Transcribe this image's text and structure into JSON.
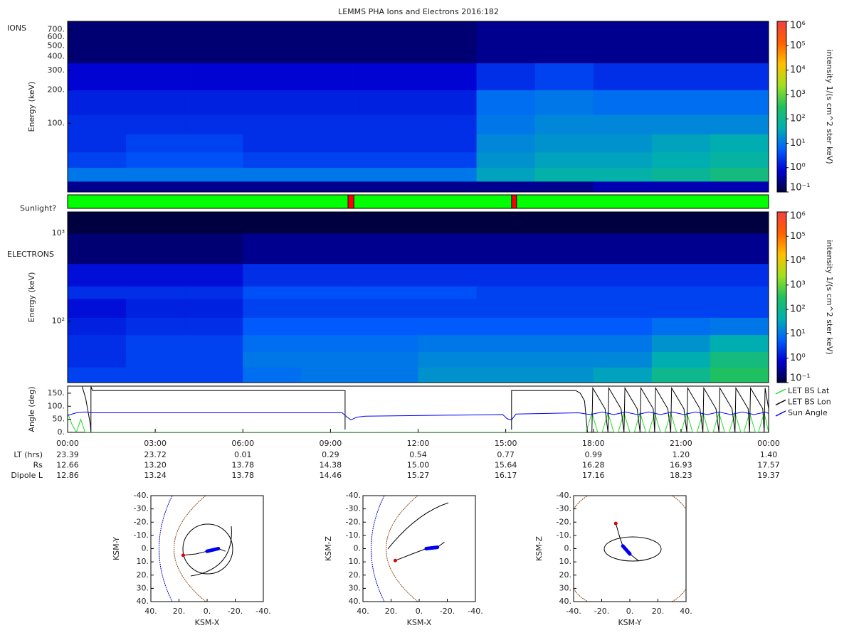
{
  "chart_data": [
    {
      "type": "spectrogram",
      "title": "LEMMS PHA Ions and Electrons  2016:182",
      "label": "IONS",
      "ylabel": "Energy (keV)",
      "log_y": true,
      "xlim": [
        0,
        24
      ],
      "ylim": [
        24,
        830
      ],
      "yticks": [
        {
          "value": 100,
          "label": "100."
        },
        {
          "value": 200,
          "label": "200."
        },
        {
          "value": 300,
          "label": "300."
        },
        {
          "value": 400,
          "label": "400."
        },
        {
          "value": 500,
          "label": "500."
        },
        {
          "value": 600,
          "label": "600."
        },
        {
          "value": 700,
          "label": "700."
        }
      ],
      "time_bins": [
        0,
        2,
        4,
        6,
        8,
        10,
        12,
        14,
        16,
        18,
        20,
        22,
        24
      ],
      "energy_bins": [
        24,
        30,
        40,
        55,
        80,
        120,
        200,
        350,
        830
      ],
      "values": [
        [
          0.3,
          0.3,
          0.3,
          0.3,
          0.3,
          0.3,
          0.3,
          0.3,
          0.3,
          0.5,
          0.5,
          0.5
        ],
        [
          10,
          10,
          10,
          10,
          10,
          10,
          10,
          30,
          50,
          50,
          80,
          150
        ],
        [
          3,
          4,
          4,
          3,
          3,
          3,
          3,
          20,
          30,
          30,
          40,
          60
        ],
        [
          2,
          3,
          3,
          2,
          2,
          2,
          2,
          15,
          20,
          20,
          30,
          40
        ],
        [
          2,
          2,
          2,
          2,
          2,
          2,
          2,
          10,
          15,
          15,
          15,
          15
        ],
        [
          1.5,
          1.5,
          1.5,
          1.5,
          1.5,
          1.5,
          1.5,
          8,
          10,
          8,
          8,
          8
        ],
        [
          0.8,
          0.8,
          0.8,
          0.8,
          0.8,
          0.8,
          0.8,
          2,
          3,
          2,
          2,
          2
        ],
        [
          0.2,
          0.2,
          0.2,
          0.2,
          0.2,
          0.2,
          0.2,
          0.3,
          0.3,
          0.3,
          0.3,
          0.3
        ]
      ],
      "colorbar": {
        "label": "intensity 1/(s cm^2 ster keV)",
        "lim": [
          0.1,
          1000000
        ],
        "colormap": [
          "#000040",
          "#0000d0",
          "#0060ff",
          "#00b0b0",
          "#20c060",
          "#a0e020",
          "#ffc000",
          "#ff6000",
          "#f04040"
        ],
        "ticks": [
          {
            "value": 0.1,
            "label": "10⁻¹"
          },
          {
            "value": 1,
            "label": "10⁰"
          },
          {
            "value": 10,
            "label": "10¹"
          },
          {
            "value": 100,
            "label": "10²"
          },
          {
            "value": 1000,
            "label": "10³"
          },
          {
            "value": 10000,
            "label": "10⁴"
          },
          {
            "value": 100000,
            "label": "10⁵"
          },
          {
            "value": 1000000,
            "label": "10⁶"
          }
        ]
      }
    },
    {
      "type": "timeline",
      "label": "Sunlight?",
      "xlim": [
        0,
        24
      ],
      "color": "#00ff00",
      "intervals": [
        {
          "start": 9.6,
          "end": 9.8,
          "color": "#ff0000"
        },
        {
          "start": 15.2,
          "end": 15.37,
          "color": "#ff0000"
        }
      ]
    },
    {
      "type": "spectrogram",
      "label": "ELECTRONS",
      "ylabel": "Energy (keV)",
      "log_y": true,
      "xlim": [
        0,
        24
      ],
      "ylim": [
        20,
        1740
      ],
      "yticks": [
        {
          "value": 100,
          "label": "10²"
        },
        {
          "value": 1000,
          "label": "10³"
        }
      ],
      "time_bins": [
        0,
        2,
        4,
        6,
        8,
        10,
        12,
        14,
        16,
        18,
        20,
        22,
        24
      ],
      "energy_bins": [
        20,
        30,
        45,
        70,
        110,
        180,
        250,
        450,
        1000,
        1740
      ],
      "values": [
        [
          3,
          3,
          3,
          8,
          10,
          10,
          20,
          20,
          20,
          30,
          100,
          300
        ],
        [
          2,
          3,
          3,
          10,
          10,
          10,
          15,
          15,
          15,
          15,
          40,
          150
        ],
        [
          2,
          3,
          3,
          8,
          8,
          8,
          10,
          10,
          10,
          10,
          20,
          40
        ],
        [
          1.5,
          2,
          2,
          5,
          5,
          5,
          5,
          5,
          5,
          5,
          8,
          10
        ],
        [
          1,
          1.5,
          1.5,
          3,
          3,
          3,
          3,
          3,
          3,
          3,
          3,
          3
        ],
        [
          2,
          2,
          2,
          4,
          4,
          4,
          4,
          3,
          3,
          3,
          3,
          3
        ],
        [
          1,
          1,
          1,
          2,
          2,
          2,
          2,
          2,
          2,
          2,
          2,
          2
        ],
        [
          0.2,
          0.2,
          0.2,
          0.3,
          0.3,
          0.3,
          0.3,
          0.3,
          0.3,
          0.3,
          0.3,
          0.3
        ],
        [
          0.1,
          0.1,
          0.1,
          0.1,
          0.1,
          0.1,
          0.1,
          0.1,
          0.1,
          0.1,
          0.1,
          0.1
        ]
      ],
      "colorbar": {
        "label": "intensity 1/(s cm^2 ster keV)",
        "lim": [
          0.1,
          1000000
        ],
        "colormap": [
          "#000040",
          "#0000d0",
          "#0060ff",
          "#00b0b0",
          "#20c060",
          "#a0e020",
          "#ffc000",
          "#ff6000",
          "#f04040"
        ],
        "ticks": [
          {
            "value": 0.1,
            "label": "10⁻¹"
          },
          {
            "value": 1,
            "label": "10⁰"
          },
          {
            "value": 10,
            "label": "10¹"
          },
          {
            "value": 100,
            "label": "10²"
          },
          {
            "value": 1000,
            "label": "10³"
          },
          {
            "value": 10000,
            "label": "10⁴"
          },
          {
            "value": 100000,
            "label": "10⁵"
          },
          {
            "value": 1000000,
            "label": "10⁶"
          }
        ]
      }
    },
    {
      "type": "line",
      "ylabel": "Angle (deg)",
      "xlim": [
        0,
        24
      ],
      "ylim": [
        0,
        177
      ],
      "yticks": [
        {
          "value": 0,
          "label": "0."
        },
        {
          "value": 50,
          "label": "50."
        },
        {
          "value": 100,
          "label": "100."
        },
        {
          "value": 150,
          "label": "150."
        }
      ],
      "xticks": [
        {
          "value": 0,
          "label": "00:00"
        },
        {
          "value": 3,
          "label": "03:00"
        },
        {
          "value": 6,
          "label": "06:00"
        },
        {
          "value": 9,
          "label": "09:00"
        },
        {
          "value": 12,
          "label": "12:00"
        },
        {
          "value": 15,
          "label": "15:00"
        },
        {
          "value": 18,
          "label": "18:00"
        },
        {
          "value": 21,
          "label": "21:00"
        },
        {
          "value": 24,
          "label": "00:00"
        }
      ],
      "series": [
        {
          "name": "LET BS Lat",
          "color": "#22dd22",
          "x": [
            0,
            0.15,
            0.3,
            0.45,
            0.6,
            17.75,
            17.95,
            18.15,
            18.3,
            18.5,
            18.7,
            18.85,
            19.05,
            19.25,
            19.4,
            19.6,
            19.8,
            19.9,
            20.1,
            20.3,
            20.45,
            20.65,
            20.85,
            21.0,
            21.2,
            21.4,
            21.55,
            21.75,
            21.95,
            22.1,
            22.3,
            22.5,
            22.65,
            22.85,
            23.05,
            23.15,
            23.35,
            23.55,
            23.65,
            23.85,
            24.0
          ],
          "values": [
            75,
            30,
            0,
            50,
            0,
            0,
            75,
            0,
            0,
            75,
            0,
            0,
            75,
            0,
            0,
            75,
            0,
            0,
            75,
            0,
            0,
            75,
            0,
            0,
            75,
            0,
            0,
            75,
            0,
            0,
            75,
            0,
            0,
            75,
            0,
            0,
            75,
            0,
            0,
            75,
            0
          ]
        },
        {
          "name": "LET BS Lon",
          "color": "#000000",
          "x": [
            0.5,
            0.62,
            0.78,
            0.8,
            0.8,
            0.85,
            9.48,
            9.5,
            9.5,
            9.52,
            15.2,
            15.2,
            15.25,
            17.4,
            17.55,
            17.7,
            17.8,
            17.95,
            17.98,
            18.4,
            18.5,
            18.53,
            18.95,
            19.05,
            19.08,
            19.5,
            19.6,
            19.63,
            20.05,
            20.1,
            20.13,
            20.55,
            20.65,
            20.68,
            21.1,
            21.2,
            21.23,
            21.65,
            21.75,
            21.78,
            22.2,
            22.3,
            22.33,
            22.75,
            22.85,
            22.88,
            23.3,
            23.35,
            23.38,
            23.8,
            23.85,
            23.88,
            24
          ],
          "values": [
            175,
            130,
            30,
            0,
            175,
            160,
            160,
            160,
            10,
            null,
            10,
            160,
            160,
            160,
            150,
            120,
            0,
            0,
            170,
            90,
            0,
            170,
            90,
            0,
            170,
            90,
            0,
            170,
            90,
            0,
            170,
            90,
            0,
            170,
            90,
            0,
            170,
            90,
            0,
            170,
            90,
            0,
            170,
            90,
            0,
            170,
            90,
            0,
            170,
            90,
            0,
            170,
            90
          ]
        },
        {
          "name": "Sun Angle",
          "color": "#0000ff",
          "x": [
            0,
            0.3,
            0.6,
            0.8,
            9.4,
            9.55,
            9.7,
            9.9,
            10.2,
            14.9,
            15.05,
            15.2,
            15.35,
            17.5,
            17.9,
            18.3,
            18.7,
            19.1,
            19.5,
            19.9,
            20.3,
            20.7,
            21.1,
            21.5,
            21.9,
            22.3,
            22.7,
            23.1,
            23.5,
            23.9,
            24
          ],
          "values": [
            65,
            75,
            78,
            75,
            75,
            60,
            48,
            58,
            62,
            68,
            52,
            48,
            70,
            75,
            68,
            78,
            68,
            78,
            68,
            78,
            68,
            78,
            68,
            78,
            68,
            78,
            68,
            78,
            68,
            78,
            72
          ]
        }
      ],
      "ephemeris": [
        {
          "name": "LT (hrs)",
          "values": [
            "23.39",
            "23.72",
            "0.01",
            "0.29",
            "0.54",
            "0.77",
            "0.99",
            "1.20",
            "1.40"
          ]
        },
        {
          "name": "Rs",
          "values": [
            "12.66",
            "13.20",
            "13.78",
            "14.38",
            "15.00",
            "15.64",
            "16.28",
            "16.93",
            "17.57"
          ]
        },
        {
          "name": "Dipole L",
          "values": [
            "12.86",
            "13.24",
            "13.78",
            "14.46",
            "15.27",
            "16.17",
            "17.16",
            "18.23",
            "19.37"
          ]
        }
      ]
    },
    {
      "type": "orbit",
      "xlabel": "KSM-X",
      "ylabel": "KSM-Y",
      "xlim": [
        40,
        -40
      ],
      "ylim": [
        -40,
        40
      ],
      "xticks": [
        {
          "value": 40,
          "label": "40."
        },
        {
          "value": 20,
          "label": "20."
        },
        {
          "value": 0,
          "label": "0."
        },
        {
          "value": -20,
          "label": "-20."
        },
        {
          "value": -40,
          "label": "-40."
        }
      ],
      "yticks": [
        {
          "value": -40,
          "label": "-40."
        },
        {
          "value": -30,
          "label": "-30."
        },
        {
          "value": -20,
          "label": "-20."
        },
        {
          "value": -10,
          "label": "-10."
        },
        {
          "value": 0,
          "label": "0."
        },
        {
          "value": 10,
          "label": "10."
        },
        {
          "value": 20,
          "label": "20."
        },
        {
          "value": 30,
          "label": "30."
        },
        {
          "value": 40,
          "label": "40."
        }
      ],
      "x": [
        17,
        8,
        0,
        -8,
        -13
      ],
      "y": [
        5,
        4,
        2,
        0,
        2
      ]
    },
    {
      "type": "orbit",
      "xlabel": "KSM-X",
      "ylabel": "KSM-Z",
      "xlim": [
        40,
        -40
      ],
      "ylim": [
        -40,
        40
      ],
      "xticks": [
        {
          "value": 40,
          "label": "40."
        },
        {
          "value": 20,
          "label": "20."
        },
        {
          "value": 0,
          "label": "0."
        },
        {
          "value": -20,
          "label": "-20."
        },
        {
          "value": -40,
          "label": "-40."
        }
      ],
      "yticks": [
        {
          "value": -40,
          "label": "-40."
        },
        {
          "value": -30,
          "label": "-30."
        },
        {
          "value": -20,
          "label": "-20."
        },
        {
          "value": -10,
          "label": "-10."
        },
        {
          "value": 0,
          "label": "0."
        },
        {
          "value": 10,
          "label": "10."
        },
        {
          "value": 20,
          "label": "20."
        },
        {
          "value": 30,
          "label": "30."
        },
        {
          "value": 40,
          "label": "40."
        }
      ],
      "x": [
        17,
        5,
        -5,
        -13,
        -18
      ],
      "y": [
        9,
        4,
        0,
        -1,
        -5
      ]
    },
    {
      "type": "orbit",
      "xlabel": "KSM-Y",
      "ylabel": "KSM-Z",
      "xlim": [
        -40,
        40
      ],
      "ylim": [
        -40,
        40
      ],
      "xticks": [
        {
          "value": -40,
          "label": "-40."
        },
        {
          "value": -20,
          "label": "-20."
        },
        {
          "value": 0,
          "label": "0."
        },
        {
          "value": 20,
          "label": "20."
        },
        {
          "value": 40,
          "label": "40."
        }
      ],
      "yticks": [
        {
          "value": -40,
          "label": "-40."
        },
        {
          "value": -30,
          "label": "-30."
        },
        {
          "value": -20,
          "label": "-20."
        },
        {
          "value": -10,
          "label": "-10."
        },
        {
          "value": 0,
          "label": "0."
        },
        {
          "value": 10,
          "label": "10."
        },
        {
          "value": 20,
          "label": "20."
        },
        {
          "value": 30,
          "label": "30."
        },
        {
          "value": 40,
          "label": "40."
        }
      ],
      "x": [
        -10,
        -7,
        -5,
        0,
        6
      ],
      "y": [
        -19,
        -8,
        -2,
        4,
        9
      ]
    }
  ]
}
